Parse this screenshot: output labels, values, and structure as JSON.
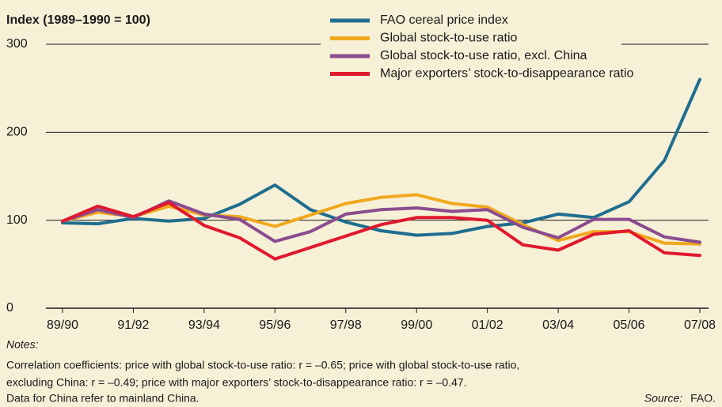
{
  "chart_data": {
    "type": "line",
    "y_label": "Index (1989–1990 = 100)",
    "categories": [
      "89/90",
      null,
      "91/92",
      null,
      "93/94",
      null,
      "95/96",
      null,
      "97/98",
      null,
      "99/00",
      null,
      "01/02",
      null,
      "03/04",
      null,
      "05/06",
      null,
      "07/08"
    ],
    "series": [
      {
        "name": "FAO cereal price index",
        "color": "#1f6e8f",
        "values": [
          97,
          96,
          102,
          99,
          102,
          118,
          140,
          112,
          98,
          88,
          83,
          85,
          93,
          97,
          107,
          103,
          121,
          168,
          260
        ]
      },
      {
        "name": "Global stock-to-use ratio",
        "color": "#f0a81c",
        "values": [
          99,
          109,
          104,
          116,
          106,
          104,
          93,
          106,
          119,
          126,
          129,
          119,
          115,
          95,
          77,
          87,
          87,
          74,
          73
        ]
      },
      {
        "name": "Global stock-to-use ratio, excl. China",
        "color": "#8a4c8f",
        "values": [
          99,
          112,
          103,
          122,
          107,
          101,
          76,
          87,
          107,
          112,
          114,
          110,
          112,
          92,
          80,
          101,
          101,
          81,
          75
        ]
      },
      {
        "name": "Major exporters’ stock-to-disappearance ratio",
        "color": "#e0192e",
        "values": [
          99,
          116,
          104,
          120,
          94,
          80,
          56,
          69,
          82,
          95,
          103,
          103,
          100,
          72,
          66,
          84,
          88,
          63,
          60
        ]
      }
    ],
    "ylim": [
      0,
      300
    ],
    "yticks": [
      0,
      100,
      200,
      300
    ],
    "grid": true,
    "notes_title": "Notes:",
    "notes": [
      "Correlation coefficients: price with global stock-to-use ratio: r = –0.65; price with global stock-to-use ratio,",
      "excluding China: r = –0.49; price with major exporters’ stock-to-disappearance ratio: r = –0.47.",
      "Data for China refer to mainland China."
    ],
    "source": {
      "label": "Source:",
      "text": "FAO."
    }
  }
}
